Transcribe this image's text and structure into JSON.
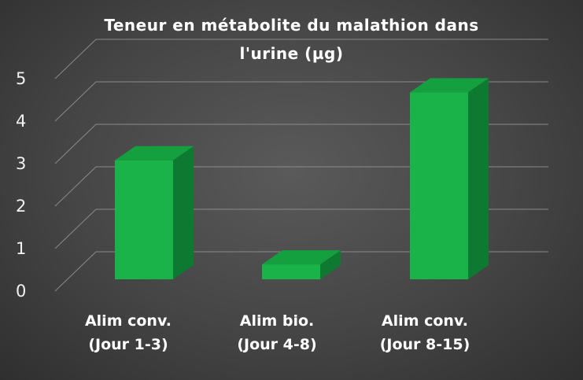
{
  "chart_data": {
    "type": "bar",
    "title_lines": [
      "Teneur en métabolite du malathion dans",
      "l'urine (µg)"
    ],
    "categories": [
      [
        "Alim conv.",
        "(Jour 1-3)"
      ],
      [
        "Alim bio.",
        "(Jour 4-8)"
      ],
      [
        "Alim conv.",
        "(Jour 8-15)"
      ]
    ],
    "values": [
      2.8,
      0.35,
      4.4
    ],
    "yticks": [
      "0",
      "1",
      "2",
      "3",
      "4",
      "5"
    ],
    "ylim": [
      0,
      5
    ],
    "grid": true,
    "colors": {
      "bar_front": "#19b34a",
      "bar_top": "#15a040",
      "bar_side": "#0e7a31",
      "gridline": "#8a8a8a"
    }
  }
}
